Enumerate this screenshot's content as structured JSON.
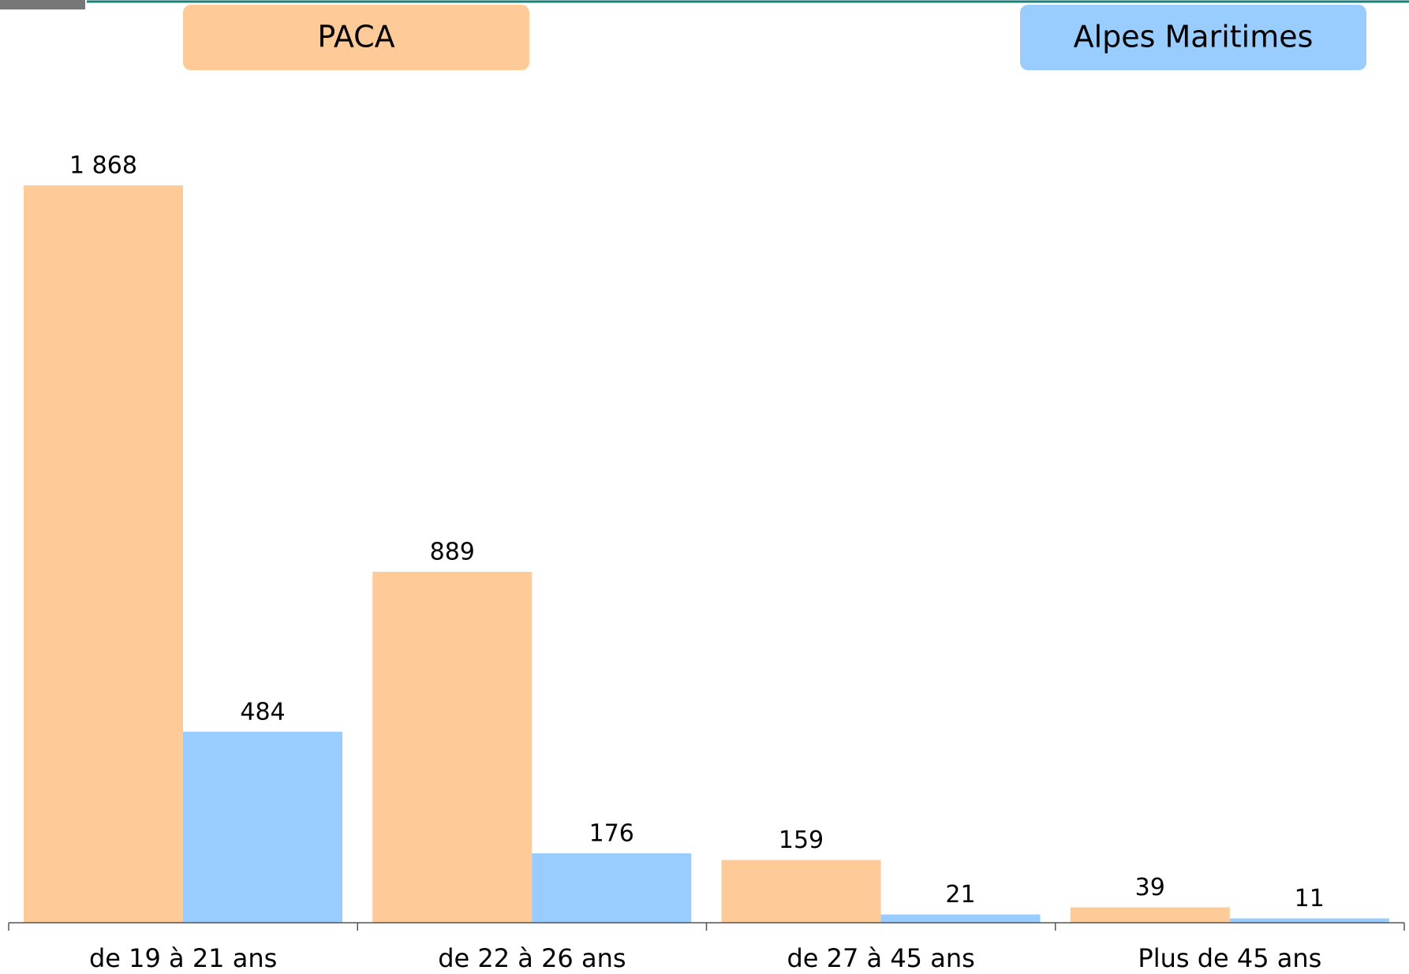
{
  "chart_data": {
    "type": "bar",
    "categories": [
      "de 19 à 21 ans",
      "de 22 à 26 ans",
      "de 27 à 45 ans",
      "Plus de 45 ans"
    ],
    "series": [
      {
        "name": "PACA",
        "color": "#fdca98",
        "values": [
          1868,
          889,
          159,
          39
        ],
        "value_labels": [
          "1 868",
          "889",
          "159",
          "39"
        ]
      },
      {
        "name": "Alpes Maritimes",
        "color": "#99ccff",
        "values": [
          484,
          176,
          21,
          11
        ]
      }
    ],
    "ylim": [
      0,
      2000
    ]
  }
}
